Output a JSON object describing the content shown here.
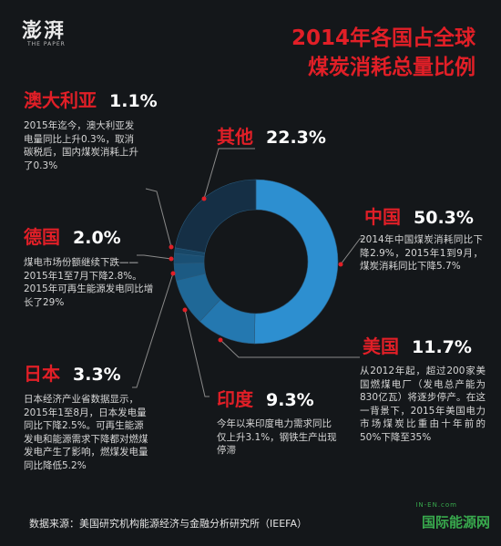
{
  "brand": {
    "logo_text": "澎湃",
    "logo_sub": "THE PAPER"
  },
  "title": {
    "line1": "2014年各国占全球",
    "line2": "煤炭消耗总量比例"
  },
  "colors": {
    "accent": "#e11f27",
    "china": "#2d8fd0",
    "others": "#152f45",
    "background": "#14171a"
  },
  "chart_data": {
    "type": "pie",
    "style": "donut",
    "title": "2014年各国占全球煤炭消耗总量比例",
    "slices": [
      {
        "label": "中国",
        "value": 50.3,
        "color": "#2d8fd0"
      },
      {
        "label": "美国",
        "value": 11.7,
        "color": "#2478b0"
      },
      {
        "label": "印度",
        "value": 9.3,
        "color": "#1f6897"
      },
      {
        "label": "日本",
        "value": 3.3,
        "color": "#1c5a83"
      },
      {
        "label": "德国",
        "value": 2.0,
        "color": "#1a4f73"
      },
      {
        "label": "澳大利亚",
        "value": 1.1,
        "color": "#184767"
      },
      {
        "label": "其他",
        "value": 22.3,
        "color": "#152f45"
      }
    ]
  },
  "labels": {
    "australia": {
      "name": "澳大利亚",
      "pct": "1.1%",
      "note": "2015年迄今，澳大利亚发电量同比上升0.3%，取消碳税后，国内煤炭消耗上升了0.3%"
    },
    "germany": {
      "name": "德国",
      "pct": "2.0%",
      "note": "煤电市场份额继续下跌——2015年1至7月下降2.8%。2015年可再生能源发电同比增长了29%"
    },
    "japan": {
      "name": "日本",
      "pct": "3.3%",
      "note": "日本经济产业省数据显示，2015年1至8月，日本发电量同比下降2.5%。可再生能源发电和能源需求下降都对燃煤发电产生了影响，燃煤发电量同比降低5.2%"
    },
    "other": {
      "name": "其他",
      "pct": "22.3%"
    },
    "china": {
      "name": "中国",
      "pct": "50.3%",
      "note": "2014年中国煤炭消耗同比下降2.9%，2015年1到9月，煤炭消耗同比下降5.7%"
    },
    "usa": {
      "name": "美国",
      "pct": "11.7%",
      "note": "从2012年起，超过200家美国燃煤电厂（发电总产能为830亿瓦）将逐步停产。在这一背景下，2015年美国电力市场煤炭比重由十年前的50%下降至35%"
    },
    "india": {
      "name": "印度",
      "pct": "9.3%",
      "note": "今年以来印度电力需求同比仅上升3.1%，钢铁生产出现停滞"
    }
  },
  "source": "数据来源：美国研究机构能源经济与金融分析研究所（IEEFA）",
  "watermark": {
    "top": "IN-EN.com",
    "main": "国际能源网"
  }
}
